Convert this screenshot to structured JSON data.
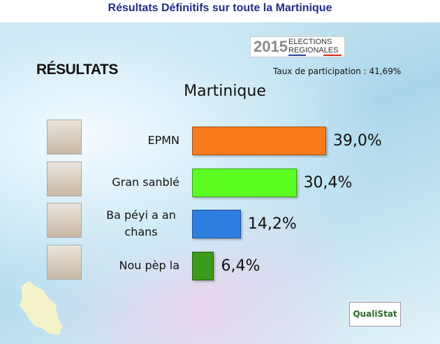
{
  "header": {
    "title": "Résultats Définitifs sur toute la Martinique"
  },
  "heading": "RÉSULTATS",
  "participation": "Taux de participation : 41,69%",
  "logo": {
    "year": "2015",
    "line1": "ELECTIONS",
    "line2": "REGIONALES"
  },
  "brand": "QualiStat",
  "chart_data": {
    "type": "bar",
    "title": "Martinique",
    "categories": [
      "EPMN",
      "Gran sanblé",
      "Ba péyi a an chans",
      "Nou pèp la"
    ],
    "values": [
      39.0,
      30.4,
      14.2,
      6.4
    ],
    "value_labels": [
      "39,0%",
      "30,4%",
      "14,2%",
      "6,4%"
    ],
    "colors": [
      "#f97b1c",
      "#5cfd22",
      "#2f7fe0",
      "#3c9a1c"
    ]
  }
}
